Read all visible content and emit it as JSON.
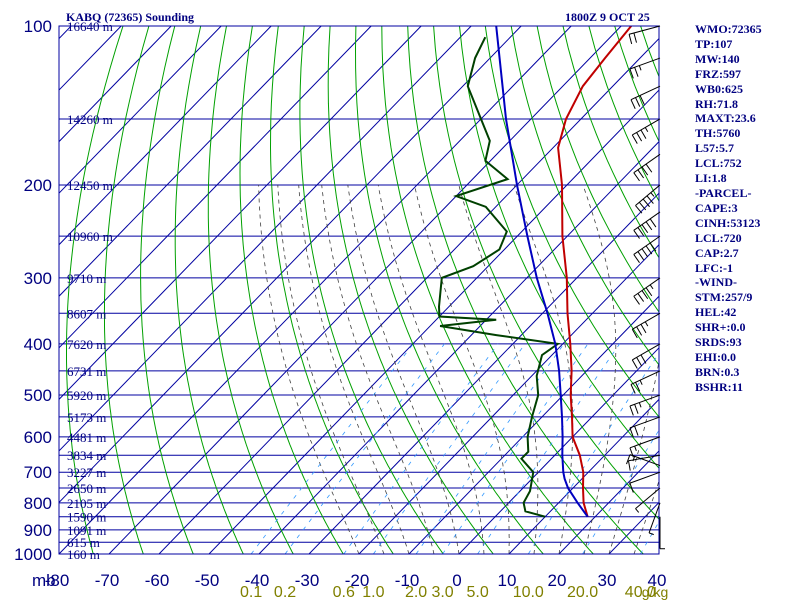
{
  "header": {
    "station": "KABQ (72365) Sounding",
    "time": "1800Z  9 OCT 25"
  },
  "panel_lines": [
    "WMO:72365",
    "TP:107",
    "MW:140",
    "FRZ:597",
    "WB0:625",
    "RH:71.8",
    "MAXT:23.6",
    "TH:5760",
    "L57:5.7",
    "LCL:752",
    "LI:1.8",
    "-PARCEL-",
    "CAPE:3",
    "CINH:53123",
    "LCL:720",
    "CAP:2.7",
    "LFC:-1",
    "-WIND-",
    "STM:257/9",
    "HEL:42",
    "SHR+:0.0",
    "SRDS:93",
    "EHI:0.0",
    "BRN:0.3",
    "BSHR:11"
  ],
  "colors": {
    "isobar": "#0000a0",
    "isotherm": "#0000a0",
    "dry_adiabat": "#00a000",
    "moist_adiabat": "#404040",
    "mixing_ratio": "#3399ff",
    "temperature": "#c00000",
    "dewpoint": "#004000",
    "parcel": "#0000c0",
    "label": "#000080",
    "mixing_label": "#808000"
  },
  "chart_data": {
    "type": "skew-t",
    "title": "KABQ (72365) Sounding",
    "pressure_axis_unit": "mb",
    "pressure_levels": [
      100,
      200,
      300,
      400,
      500,
      600,
      700,
      800,
      900,
      1000
    ],
    "temperature_ticks": [
      -80,
      -70,
      -60,
      -50,
      -40,
      -30,
      -20,
      -10,
      0,
      10,
      20,
      30,
      40
    ],
    "temperature_range": [
      -80,
      40
    ],
    "height_labels": [
      {
        "p": 100,
        "label": "16640 m"
      },
      {
        "p": 150,
        "label": "14260 m"
      },
      {
        "p": 200,
        "label": "12450 m"
      },
      {
        "p": 250,
        "label": "10960 m"
      },
      {
        "p": 300,
        "label": "9710 m"
      },
      {
        "p": 350,
        "label": "8607 m"
      },
      {
        "p": 400,
        "label": "7620 m"
      },
      {
        "p": 450,
        "label": "6731 m"
      },
      {
        "p": 500,
        "label": "5920 m"
      },
      {
        "p": 550,
        "label": "5173 m"
      },
      {
        "p": 600,
        "label": "4481 m"
      },
      {
        "p": 650,
        "label": "3834 m"
      },
      {
        "p": 700,
        "label": "3227 m"
      },
      {
        "p": 750,
        "label": "2650 m"
      },
      {
        "p": 800,
        "label": "2105 m"
      },
      {
        "p": 850,
        "label": "1590 m"
      },
      {
        "p": 900,
        "label": "1091 m"
      },
      {
        "p": 950,
        "label": "615 m"
      },
      {
        "p": 1000,
        "label": "160 m"
      }
    ],
    "mixing_ratio_labels": [
      "0.1",
      "0.2",
      "0.6",
      "1.0",
      "2.0",
      "3.0",
      "5.0",
      "10.0",
      "20.0",
      "40.0"
    ],
    "mixing_ratio_values": [
      0.1,
      0.2,
      0.6,
      1.0,
      2.0,
      3.0,
      5.0,
      10.0,
      20.0,
      40.0
    ],
    "mixing_unit": "g/kg",
    "temperature_profile": [
      {
        "p": 850,
        "t": 18.5
      },
      {
        "p": 800,
        "t": 15
      },
      {
        "p": 750,
        "t": 12
      },
      {
        "p": 700,
        "t": 9
      },
      {
        "p": 650,
        "t": 5
      },
      {
        "p": 600,
        "t": 0
      },
      {
        "p": 550,
        "t": -4
      },
      {
        "p": 500,
        "t": -8.5
      },
      {
        "p": 450,
        "t": -13
      },
      {
        "p": 400,
        "t": -18.5
      },
      {
        "p": 350,
        "t": -25
      },
      {
        "p": 300,
        "t": -32
      },
      {
        "p": 250,
        "t": -41
      },
      {
        "p": 200,
        "t": -51
      },
      {
        "p": 170,
        "t": -59
      },
      {
        "p": 150,
        "t": -63
      },
      {
        "p": 130,
        "t": -66
      },
      {
        "p": 115,
        "t": -67
      },
      {
        "p": 100,
        "t": -68
      }
    ],
    "dewpoint_profile": [
      {
        "p": 850,
        "td": 10
      },
      {
        "p": 830,
        "td": 5
      },
      {
        "p": 800,
        "td": 3
      },
      {
        "p": 760,
        "td": 2
      },
      {
        "p": 700,
        "td": -1
      },
      {
        "p": 660,
        "td": -6
      },
      {
        "p": 640,
        "td": -6
      },
      {
        "p": 600,
        "td": -9
      },
      {
        "p": 550,
        "td": -12
      },
      {
        "p": 500,
        "td": -15
      },
      {
        "p": 460,
        "td": -19
      },
      {
        "p": 420,
        "td": -22
      },
      {
        "p": 400,
        "td": -21
      },
      {
        "p": 385,
        "td": -35
      },
      {
        "p": 370,
        "td": -48
      },
      {
        "p": 360,
        "td": -38
      },
      {
        "p": 355,
        "td": -50
      },
      {
        "p": 340,
        "td": -52
      },
      {
        "p": 300,
        "td": -57
      },
      {
        "p": 285,
        "td": -53
      },
      {
        "p": 265,
        "td": -51
      },
      {
        "p": 245,
        "td": -53
      },
      {
        "p": 220,
        "td": -62
      },
      {
        "p": 210,
        "td": -70
      },
      {
        "p": 195,
        "td": -63
      },
      {
        "p": 180,
        "td": -71
      },
      {
        "p": 165,
        "td": -74
      },
      {
        "p": 150,
        "td": -80
      },
      {
        "p": 130,
        "td": -89
      },
      {
        "p": 115,
        "td": -93
      },
      {
        "p": 105,
        "td": -95
      }
    ],
    "parcel_profile": [
      {
        "p": 850,
        "t": 18.5
      },
      {
        "p": 800,
        "t": 13.8
      },
      {
        "p": 750,
        "t": 9
      },
      {
        "p": 720,
        "t": 6.5
      },
      {
        "p": 700,
        "t": 5
      },
      {
        "p": 650,
        "t": 1.5
      },
      {
        "p": 600,
        "t": -2
      },
      {
        "p": 550,
        "t": -6
      },
      {
        "p": 500,
        "t": -10.5
      },
      {
        "p": 450,
        "t": -15.5
      },
      {
        "p": 400,
        "t": -21.5
      },
      {
        "p": 350,
        "t": -29
      },
      {
        "p": 300,
        "t": -38
      },
      {
        "p": 250,
        "t": -48
      },
      {
        "p": 200,
        "t": -60
      },
      {
        "p": 150,
        "t": -75
      },
      {
        "p": 100,
        "t": -95
      }
    ],
    "wind_barbs": [
      {
        "p": 850,
        "dir": 180,
        "spd": 5
      },
      {
        "p": 800,
        "dir": 200,
        "spd": 5
      },
      {
        "p": 750,
        "dir": 230,
        "spd": 5
      },
      {
        "p": 700,
        "dir": 250,
        "spd": 10
      },
      {
        "p": 680,
        "dir": 290,
        "spd": 15
      },
      {
        "p": 650,
        "dir": 260,
        "spd": 10
      },
      {
        "p": 600,
        "dir": 250,
        "spd": 15
      },
      {
        "p": 550,
        "dir": 250,
        "spd": 20
      },
      {
        "p": 500,
        "dir": 250,
        "spd": 25
      },
      {
        "p": 450,
        "dir": 245,
        "spd": 25
      },
      {
        "p": 400,
        "dir": 240,
        "spd": 30
      },
      {
        "p": 350,
        "dir": 240,
        "spd": 35
      },
      {
        "p": 300,
        "dir": 235,
        "spd": 45
      },
      {
        "p": 250,
        "dir": 235,
        "spd": 50
      },
      {
        "p": 225,
        "dir": 235,
        "spd": 50
      },
      {
        "p": 200,
        "dir": 230,
        "spd": 45
      },
      {
        "p": 175,
        "dir": 235,
        "spd": 40
      },
      {
        "p": 150,
        "dir": 240,
        "spd": 35
      },
      {
        "p": 130,
        "dir": 245,
        "spd": 30
      },
      {
        "p": 115,
        "dir": 250,
        "spd": 25
      },
      {
        "p": 100,
        "dir": 255,
        "spd": 20
      }
    ]
  }
}
